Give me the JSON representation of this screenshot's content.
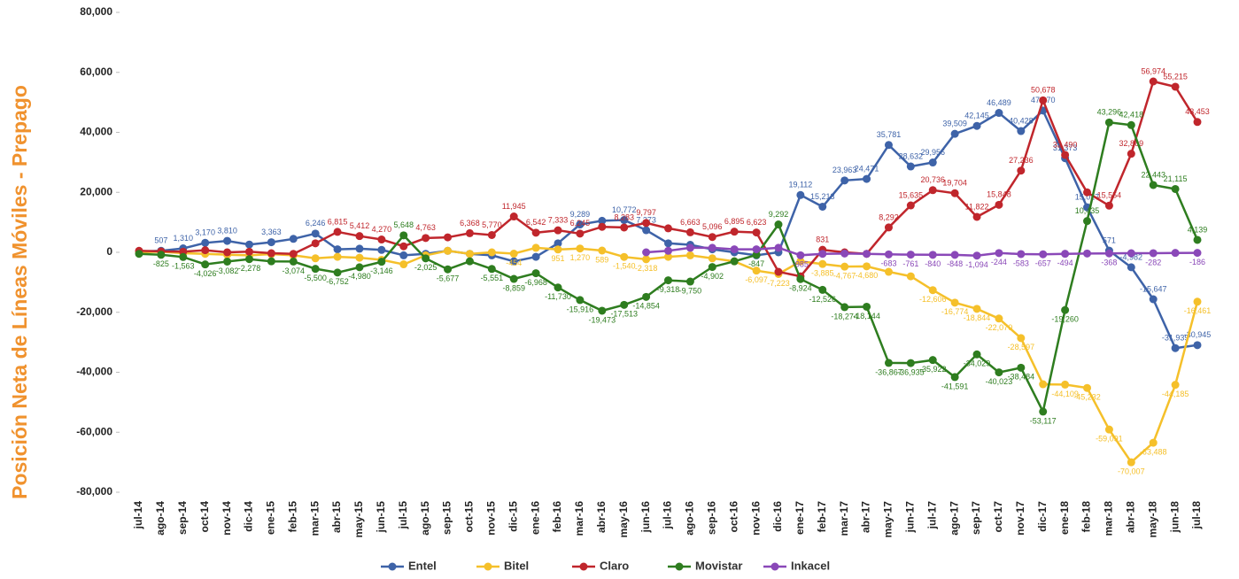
{
  "chart_data": {
    "type": "line",
    "y_label": "Posición Neta de Líneas Móviles - Prepago",
    "categories": [
      "jul-14",
      "ago-14",
      "sep-14",
      "oct-14",
      "nov-14",
      "dic-14",
      "ene-15",
      "feb-15",
      "mar-15",
      "abr-15",
      "may-15",
      "jun-15",
      "jul-15",
      "ago-15",
      "sep-15",
      "oct-15",
      "nov-15",
      "dic-15",
      "ene-16",
      "feb-16",
      "mar-16",
      "abr-16",
      "may-16",
      "jun-16",
      "jul-16",
      "ago-16",
      "sep-16",
      "oct-16",
      "nov-16",
      "dic-16",
      "ene-17",
      "feb-17",
      "mar-17",
      "abr-17",
      "may-17",
      "jun-17",
      "jul-17",
      "ago-17",
      "sep-17",
      "oct-17",
      "nov-17",
      "dic-17",
      "ene-18",
      "feb-18",
      "mar-18",
      "abr-18",
      "may-18",
      "jun-18",
      "jul-18"
    ],
    "ylim": [
      -80000,
      80000
    ],
    "yticks": [
      {
        "value": -80000,
        "label": "-80,000"
      },
      {
        "value": -60000,
        "label": "-60,000"
      },
      {
        "value": -40000,
        "label": "-40,000"
      },
      {
        "value": -20000,
        "label": "-20,000"
      },
      0,
      {
        "value": 20000,
        "label": "20,000"
      },
      {
        "value": 40000,
        "label": "40,000"
      },
      {
        "value": 60000,
        "label": "60,000"
      },
      {
        "value": 80000,
        "label": "80,000"
      }
    ],
    "grid": false,
    "legend": "bottom",
    "series": [
      {
        "name": "Entel",
        "color": "#3e63a8",
        "values": [
          300,
          507,
          1310,
          3170,
          3810,
          2600,
          3363,
          4500,
          6246,
          1000,
          1200,
          800,
          -1000,
          -500,
          500,
          -500,
          -1000,
          -3000,
          -1500,
          3000,
          9289,
          10500,
          10772,
          7373,
          3000,
          2500,
          1000,
          0,
          -1000,
          0,
          19112,
          15213,
          23963,
          24471,
          35781,
          28632,
          29956,
          39509,
          42145,
          46489,
          40428,
          47270,
          31373,
          15017,
          571,
          -4982,
          -15647,
          -31939,
          -30945
        ],
        "value_labels": [
          null,
          "507",
          "1,310",
          "3,170",
          "3,810",
          null,
          "3,363",
          null,
          "6,246",
          null,
          null,
          null,
          null,
          null,
          null,
          null,
          null,
          null,
          null,
          null,
          "9,289",
          null,
          "10,772",
          "7,373",
          null,
          null,
          null,
          null,
          null,
          null,
          "19,112",
          "15,213",
          "23,963",
          "24,471",
          "35,781",
          "28,632",
          "29,956",
          "39,509",
          "42,145",
          "46,489",
          "40,428",
          "47,270",
          "31,373",
          "15,017",
          "571",
          "-4,982",
          "-15,647",
          "-31,939",
          "-30,945"
        ]
      },
      {
        "name": "Bitel",
        "color": "#f5c02a",
        "values": [
          0,
          200,
          -300,
          -500,
          -800,
          -1000,
          -600,
          -1000,
          -2000,
          -1500,
          -1800,
          -2500,
          -4000,
          -1000,
          500,
          -500,
          0,
          -454,
          1500,
          951,
          1270,
          589,
          -1540,
          -2318,
          -1500,
          -1000,
          -2000,
          -3000,
          -6097,
          -7223,
          -3000,
          -3885,
          -4767,
          -4680,
          -6500,
          -8000,
          -12606,
          -16774,
          -18844,
          -22070,
          -28597,
          -44000,
          -44109,
          -45232,
          -59091,
          -70007,
          -63488,
          -44185,
          -16461
        ],
        "value_labels": [
          null,
          null,
          null,
          null,
          null,
          null,
          null,
          null,
          null,
          null,
          null,
          null,
          null,
          null,
          null,
          null,
          null,
          "-454",
          null,
          "951",
          "1,270",
          "589",
          "-1,540",
          "-2,318",
          null,
          null,
          null,
          null,
          "-6,097",
          "-7,223",
          null,
          "-3,885",
          "-4,767",
          "-4,680",
          null,
          null,
          "-12,606",
          "-16,774",
          "-18,844",
          "-22,070",
          "-28,597",
          null,
          "-44,109",
          "-45,232",
          "-59,091",
          "-70,007",
          "-63,488",
          "-44,185",
          "-16,461"
        ]
      },
      {
        "name": "Claro",
        "color": "#c0262c",
        "values": [
          500,
          300,
          200,
          700,
          0,
          200,
          -300,
          -500,
          3000,
          6815,
          5412,
          4270,
          2000,
          4763,
          5000,
          6368,
          5770,
          11945,
          6542,
          7333,
          6245,
          8500,
          8283,
          9797,
          8000,
          6663,
          5096,
          6895,
          6623,
          -6500,
          -8000,
          831,
          0,
          -500,
          8292,
          15635,
          20736,
          19704,
          11822,
          15848,
          27236,
          50678,
          32490,
          20000,
          15554,
          32869,
          56974,
          55215,
          43453
        ],
        "value_labels": [
          null,
          null,
          null,
          null,
          null,
          null,
          null,
          null,
          null,
          "6,815",
          "5,412",
          "4,270",
          null,
          "4,763",
          null,
          "6,368",
          "5,770",
          "11,945",
          "6,542",
          "7,333",
          "6,245",
          null,
          "8,283",
          "9,797",
          null,
          "6,663",
          "5,096",
          "6,895",
          "6,623",
          null,
          null,
          "831",
          null,
          null,
          "8,292",
          "15,635",
          "20,736",
          "19,704",
          "11,822",
          "15,848",
          "27,236",
          "50,678",
          "32,490",
          null,
          "15,554",
          "32,869",
          "56,974",
          "55,215",
          "43,453"
        ]
      },
      {
        "name": "Movistar",
        "color": "#2e7d1f",
        "values": [
          -500,
          -825,
          -1563,
          -4026,
          -3082,
          -2278,
          -3000,
          -3074,
          -5500,
          -6752,
          -4980,
          -3146,
          5648,
          -2025,
          -5677,
          -3000,
          -5551,
          -8859,
          -6968,
          -11730,
          -15916,
          -19473,
          -17513,
          -14854,
          -9318,
          -9750,
          -4902,
          -3000,
          -847,
          9292,
          -8924,
          -12526,
          -18274,
          -18144,
          -36867,
          -36935,
          -35922,
          -41591,
          -34029,
          -40023,
          -38484,
          -53117,
          -19260,
          10435,
          43296,
          42418,
          22443,
          21115,
          4139
        ],
        "value_labels": [
          null,
          "-825",
          "-1,563",
          "-4,026",
          "-3,082",
          "-2,278",
          null,
          "-3,074",
          "-5,500",
          "-6,752",
          "-4,980",
          "-3,146",
          "5,648",
          "-2,025",
          "-5,677",
          null,
          "-5,551",
          "-8,859",
          "-6,968",
          "-11,730",
          "-15,916",
          "-19,473",
          "-17,513",
          "-14,854",
          "-9,318",
          "-9,750",
          "-4,902",
          null,
          "-847",
          "9,292",
          "-8,924",
          "-12,526",
          "-18,274",
          "-18,144",
          "-36,867",
          "-36,935",
          "-35,922",
          "-41,591",
          "-34,029",
          "-40,023",
          "-38,484",
          "-53,117",
          "-19,260",
          "10,435",
          "43,296",
          "42,418",
          "22,443",
          "21,115",
          "4,139"
        ]
      },
      {
        "name": "Inkacel",
        "color": "#8a48b8",
        "values": [
          null,
          null,
          null,
          null,
          null,
          null,
          null,
          null,
          null,
          null,
          null,
          null,
          null,
          null,
          null,
          null,
          null,
          null,
          null,
          null,
          null,
          null,
          null,
          0,
          500,
          1500,
          1500,
          1000,
          1000,
          1500,
          -985,
          -500,
          -400,
          -500,
          -683,
          -761,
          -840,
          -848,
          -1094,
          -244,
          -583,
          -657,
          -494,
          -400,
          -368,
          -300,
          -282,
          -200,
          -186
        ],
        "value_labels": [
          null,
          null,
          null,
          null,
          null,
          null,
          null,
          null,
          null,
          null,
          null,
          null,
          null,
          null,
          null,
          null,
          null,
          null,
          null,
          null,
          null,
          null,
          null,
          null,
          null,
          null,
          null,
          null,
          null,
          null,
          "-985",
          null,
          null,
          null,
          "-683",
          "-761",
          "-840",
          "-848",
          "-1,094",
          "-244",
          "-583",
          "-657",
          "-494",
          null,
          "-368",
          null,
          "-282",
          null,
          "-186"
        ]
      }
    ]
  }
}
